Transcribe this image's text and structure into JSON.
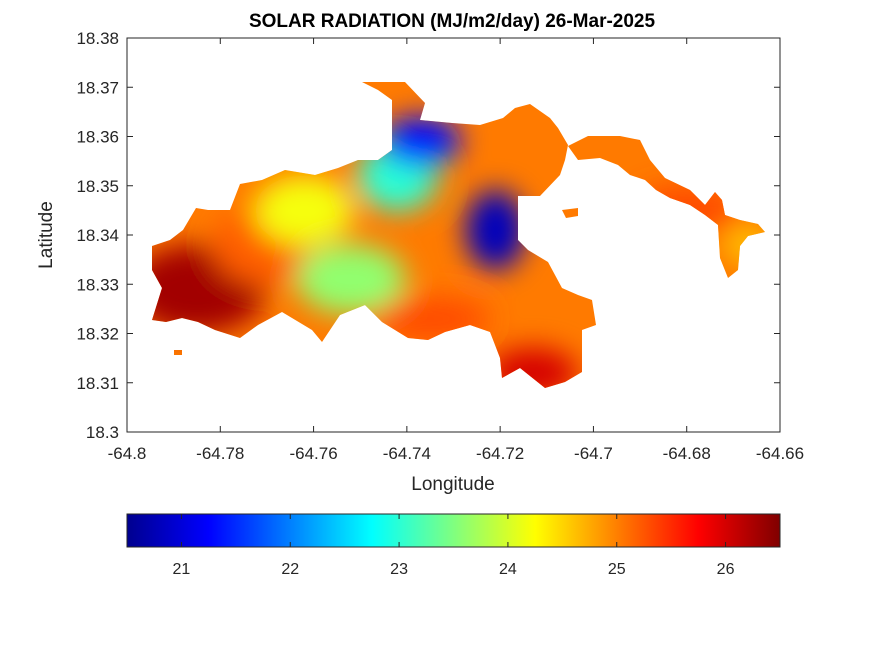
{
  "chart_data": {
    "type": "heatmap",
    "title": "SOLAR RADIATION (MJ/m2/day) 26-Mar-2025",
    "xlabel": "Longitude",
    "ylabel": "Latitude",
    "xlim": [
      -64.8,
      -64.66
    ],
    "ylim": [
      18.3,
      18.38
    ],
    "x_ticks": [
      -64.8,
      -64.78,
      -64.76,
      -64.74,
      -64.72,
      -64.7,
      -64.68,
      -64.66
    ],
    "x_tick_labels": [
      "-64.8",
      "-64.78",
      "-64.76",
      "-64.74",
      "-64.72",
      "-64.7",
      "-64.68",
      "-64.66"
    ],
    "y_ticks": [
      18.3,
      18.31,
      18.32,
      18.33,
      18.34,
      18.35,
      18.36,
      18.37,
      18.38
    ],
    "y_tick_labels": [
      "18.3",
      "18.31",
      "18.32",
      "18.33",
      "18.34",
      "18.35",
      "18.36",
      "18.37",
      "18.38"
    ],
    "colormap": "jet",
    "colorbar": {
      "orientation": "horizontal",
      "range": [
        20.5,
        26.5
      ],
      "ticks": [
        21,
        22,
        23,
        24,
        25,
        26
      ],
      "tick_labels": [
        "21",
        "22",
        "23",
        "24",
        "25",
        "26"
      ]
    },
    "grid": false,
    "regions": [
      {
        "name_hint": "west",
        "lon": -64.785,
        "lat": 18.329,
        "value": 26.3
      },
      {
        "name_hint": "west-central",
        "lon": -64.77,
        "lat": 18.338,
        "value": 25.2
      },
      {
        "name_hint": "north-central ridge",
        "lon": -64.762,
        "lat": 18.345,
        "value": 24.2
      },
      {
        "name_hint": "central",
        "lon": -64.752,
        "lat": 18.331,
        "value": 23.6
      },
      {
        "name_hint": "north-central",
        "lon": -64.742,
        "lat": 18.352,
        "value": 23.0
      },
      {
        "name_hint": "northeast bay",
        "lon": -64.737,
        "lat": 18.359,
        "value": 21.3
      },
      {
        "name_hint": "east bay",
        "lon": -64.721,
        "lat": 18.341,
        "value": 20.8
      },
      {
        "name_hint": "south coast",
        "lon": -64.735,
        "lat": 18.323,
        "value": 25.3
      },
      {
        "name_hint": "southeast point",
        "lon": -64.713,
        "lat": 18.312,
        "value": 26.0
      },
      {
        "name_hint": "east peninsula",
        "lon": -64.68,
        "lat": 18.345,
        "value": 25.3
      },
      {
        "name_hint": "far east",
        "lon": -64.667,
        "lat": 18.338,
        "value": 24.6
      }
    ]
  },
  "colors": {
    "jet_stops": [
      "#00008f",
      "#0000ff",
      "#00ffff",
      "#ffff00",
      "#ff0000",
      "#800000"
    ],
    "axes": "#262626",
    "background": "#ffffff"
  }
}
